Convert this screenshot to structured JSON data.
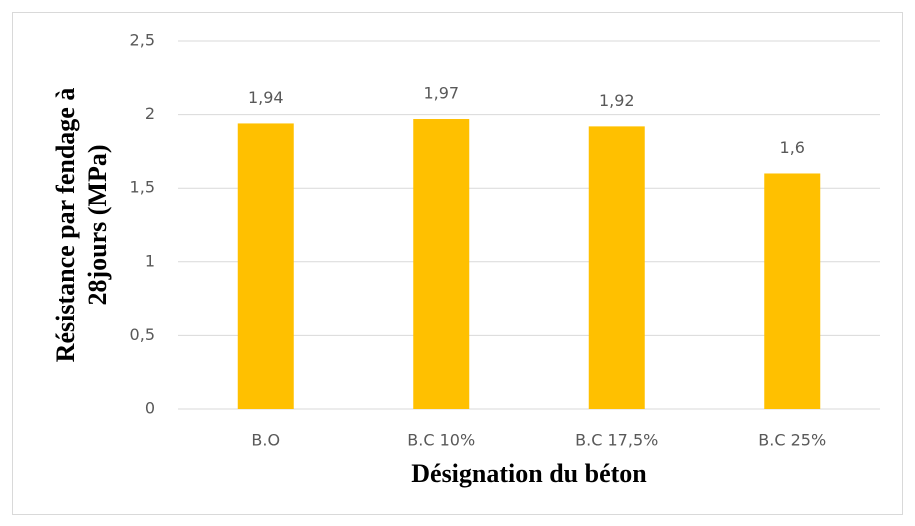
{
  "chart_data": {
    "type": "bar",
    "ylabel": [
      "Résistance par fendage à",
      "28jours (MPa)"
    ],
    "xlabel": "Désignation du béton",
    "categories": [
      "B.O",
      "B.C 10%",
      "B.C 17,5%",
      "B.C 25%"
    ],
    "values": [
      1.94,
      1.97,
      1.92,
      1.6
    ],
    "value_labels": [
      "1,94",
      "1,97",
      "1,92",
      "1,6"
    ],
    "color": "#ffc000",
    "ylim": [
      0,
      2.5
    ],
    "yticks": [
      0,
      {
        "value": 0.5,
        "label": "0,5"
      },
      1,
      {
        "value": 1.5,
        "label": "1,5"
      },
      2,
      {
        "value": 2.5,
        "label": "2,5"
      }
    ],
    "grid": true
  }
}
